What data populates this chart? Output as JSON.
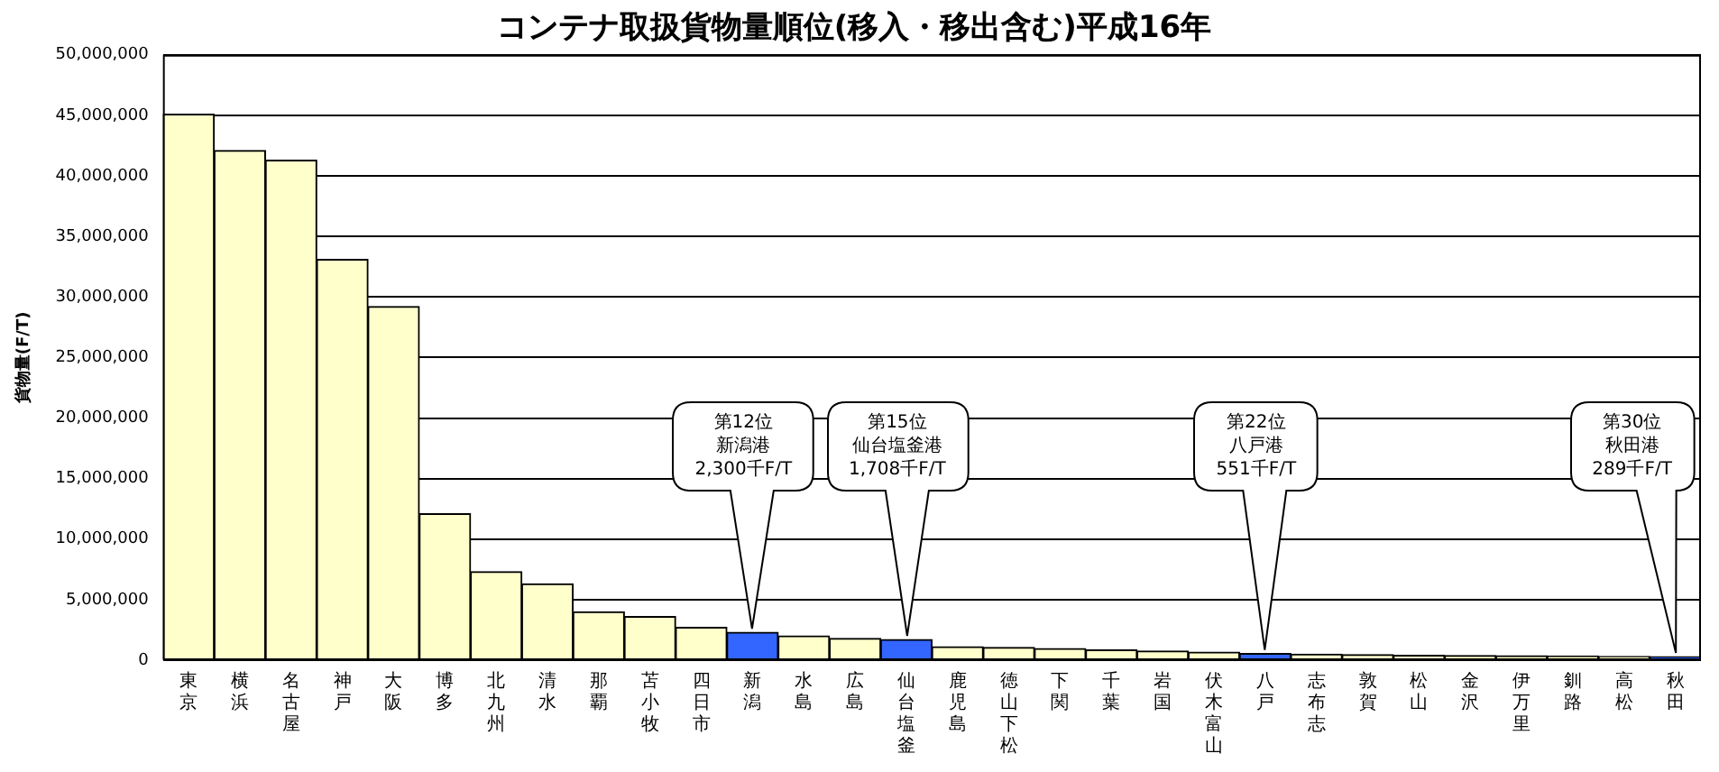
{
  "chart_data": {
    "type": "bar",
    "title": "コンテナ取扱貨物量順位(移入・移出含む)平成16年",
    "ylabel": "貨物量(F/T)",
    "categories": [
      "東京",
      "横浜",
      "名古屋",
      "神戸",
      "大阪",
      "博多",
      "北九州",
      "清水",
      "那覇",
      "苫小牧",
      "四日市",
      "新潟",
      "水島",
      "広島",
      "仙台塩釜",
      "鹿児島",
      "徳山下松",
      "下関",
      "千葉",
      "岩国",
      "伏木富山",
      "八戸",
      "志布志",
      "敦賀",
      "松山",
      "金沢",
      "伊万里",
      "釧路",
      "高松",
      "秋田"
    ],
    "values": [
      45100000,
      42100000,
      41300000,
      33100000,
      29200000,
      12100000,
      7300000,
      6300000,
      4000000,
      3600000,
      2700000,
      2300000,
      2000000,
      1800000,
      1708000,
      1100000,
      1050000,
      950000,
      850000,
      750000,
      650000,
      551000,
      500000,
      450000,
      400000,
      380000,
      360000,
      340000,
      310000,
      289000
    ],
    "colors": [
      "#ffffcc",
      "#ffffcc",
      "#ffffcc",
      "#ffffcc",
      "#ffffcc",
      "#ffffcc",
      "#ffffcc",
      "#ffffcc",
      "#ffffcc",
      "#ffffcc",
      "#ffffcc",
      "#3366ff",
      "#ffffcc",
      "#ffffcc",
      "#3366ff",
      "#ffffcc",
      "#ffffcc",
      "#ffffcc",
      "#ffffcc",
      "#ffffcc",
      "#ffffcc",
      "#3366ff",
      "#ffffcc",
      "#ffffcc",
      "#ffffcc",
      "#ffffcc",
      "#ffffcc",
      "#ffffcc",
      "#ffffcc",
      "#3366ff"
    ],
    "ylim": [
      0,
      50000000
    ],
    "yticks": [
      0,
      {
        "value": 5000000,
        "label": "5,000,000"
      },
      {
        "value": 10000000,
        "label": "10,000,000"
      },
      {
        "value": 15000000,
        "label": "15,000,000"
      },
      {
        "value": 20000000,
        "label": "20,000,000"
      },
      {
        "value": 25000000,
        "label": "25,000,000"
      },
      {
        "value": 30000000,
        "label": "30,000,000"
      },
      {
        "value": 35000000,
        "label": "35,000,000"
      },
      {
        "value": 40000000,
        "label": "40,000,000"
      },
      {
        "value": 45000000,
        "label": "45,000,000"
      },
      {
        "value": 50000000,
        "label": "50,000,000"
      }
    ],
    "grid": "y",
    "annotations": [
      "第12位",
      "新潟港",
      "2,300千F/T",
      "第15位",
      "仙台塩釜港",
      "1,708千F/T",
      "第22位",
      "八戸港",
      "551千F/T",
      "第30位",
      "秋田港",
      "289千F/T"
    ]
  }
}
